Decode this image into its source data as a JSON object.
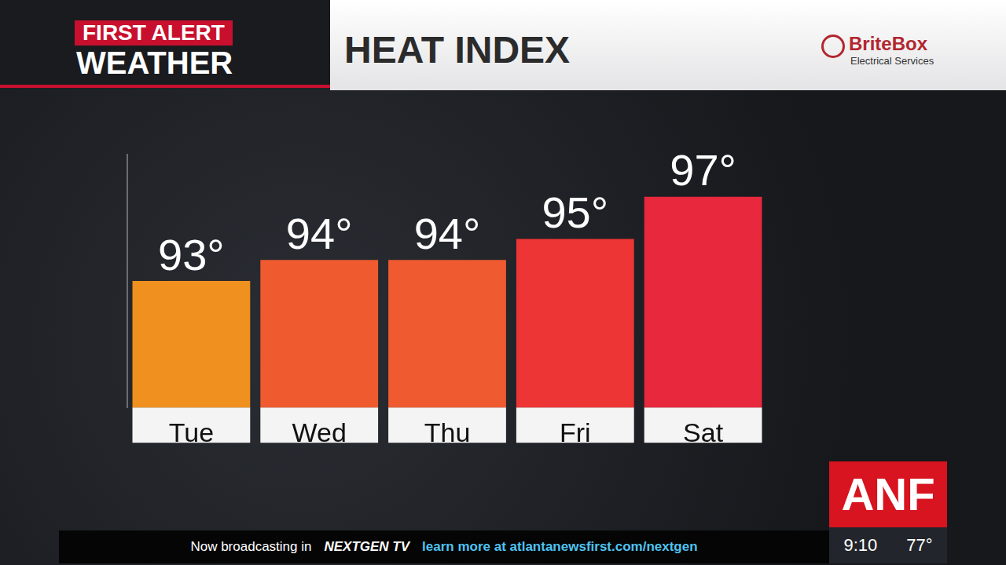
{
  "chart_data": {
    "type": "bar",
    "title": "HEAT INDEX",
    "categories": [
      "Tue",
      "Wed",
      "Thu",
      "Fri",
      "Sat"
    ],
    "values": [
      93,
      94,
      94,
      95,
      97
    ],
    "value_labels": [
      "93°",
      "94°",
      "94°",
      "95°",
      "97°"
    ],
    "colors": [
      "#f0901e",
      "#f05a2f",
      "#f05a30",
      "#ee3535",
      "#e8283c"
    ],
    "ylim": [
      87,
      99
    ],
    "grid": false,
    "data_labels": true,
    "tick_labels": "x"
  },
  "header": {
    "brand_top": "FIRST ALERT",
    "brand_bottom": "WEATHER",
    "sponsor": "BriteBox",
    "sponsor_sub": "Electrical Services"
  },
  "ticker": {
    "text": "Now broadcasting in",
    "logo": "NEXTGEN TV",
    "link": "learn more at atlantanewsfirst.com/nextgen"
  },
  "station": {
    "logo": "ANF",
    "time": "9:10",
    "temperature": "77°"
  }
}
